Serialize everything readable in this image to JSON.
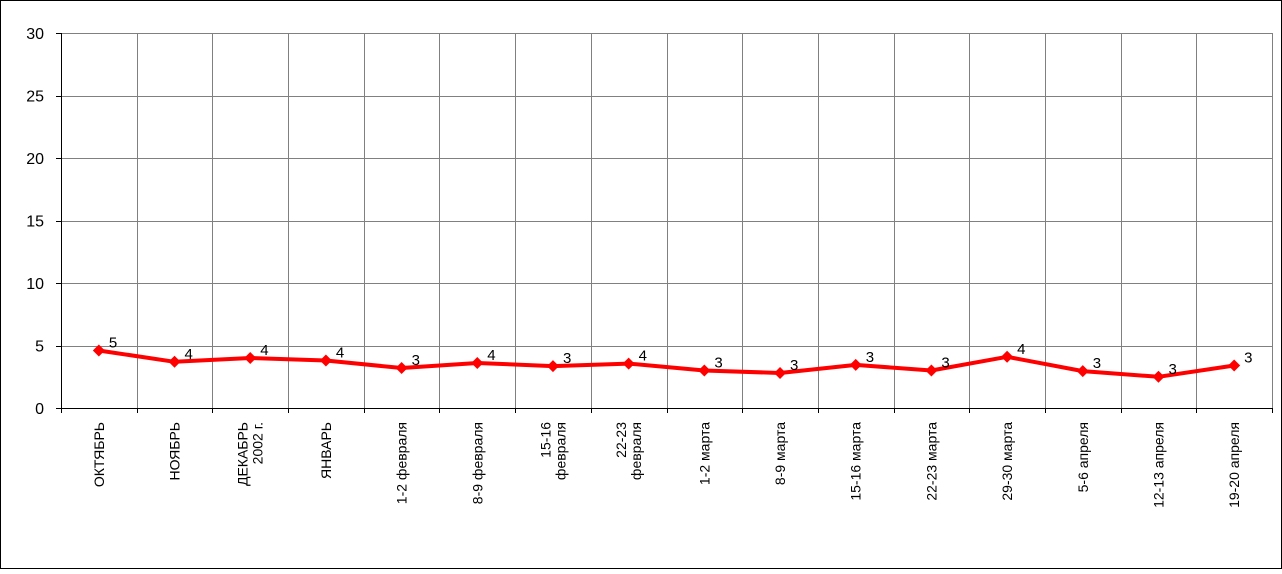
{
  "chart_data": {
    "type": "line",
    "title": "",
    "xlabel": "",
    "ylabel": "",
    "ylim": [
      0,
      30
    ],
    "yticks": [
      0,
      5,
      10,
      15,
      20,
      25,
      30
    ],
    "grid": true,
    "categories": [
      [
        "ОКТЯБРЬ"
      ],
      [
        "НОЯБРЬ"
      ],
      [
        "ДЕКАБРЬ",
        "2002 г."
      ],
      [
        "ЯНВАРЬ"
      ],
      [
        "1-2 февраля"
      ],
      [
        "8-9 февраля"
      ],
      [
        "15-16",
        "февраля"
      ],
      [
        "22-23",
        "февраля"
      ],
      [
        "1-2 марта"
      ],
      [
        "8-9 марта"
      ],
      [
        "15-16 марта"
      ],
      [
        "22-23 марта"
      ],
      [
        "29-30 марта"
      ],
      [
        "5-6 апреля"
      ],
      [
        "12-13 апреля"
      ],
      [
        "19-20 апреля"
      ]
    ],
    "series": [
      {
        "color": "#ff0000",
        "values": [
          4.6,
          3.7,
          4.0,
          3.8,
          3.2,
          3.6,
          3.35,
          3.55,
          3.0,
          2.8,
          3.45,
          3.0,
          4.1,
          2.95,
          2.5,
          3.4
        ],
        "data_labels": [
          "5",
          "4",
          "4",
          "4",
          "3",
          "4",
          "3",
          "4",
          "3",
          "3",
          "3",
          "3",
          "4",
          "3",
          "3",
          "3"
        ]
      }
    ]
  }
}
